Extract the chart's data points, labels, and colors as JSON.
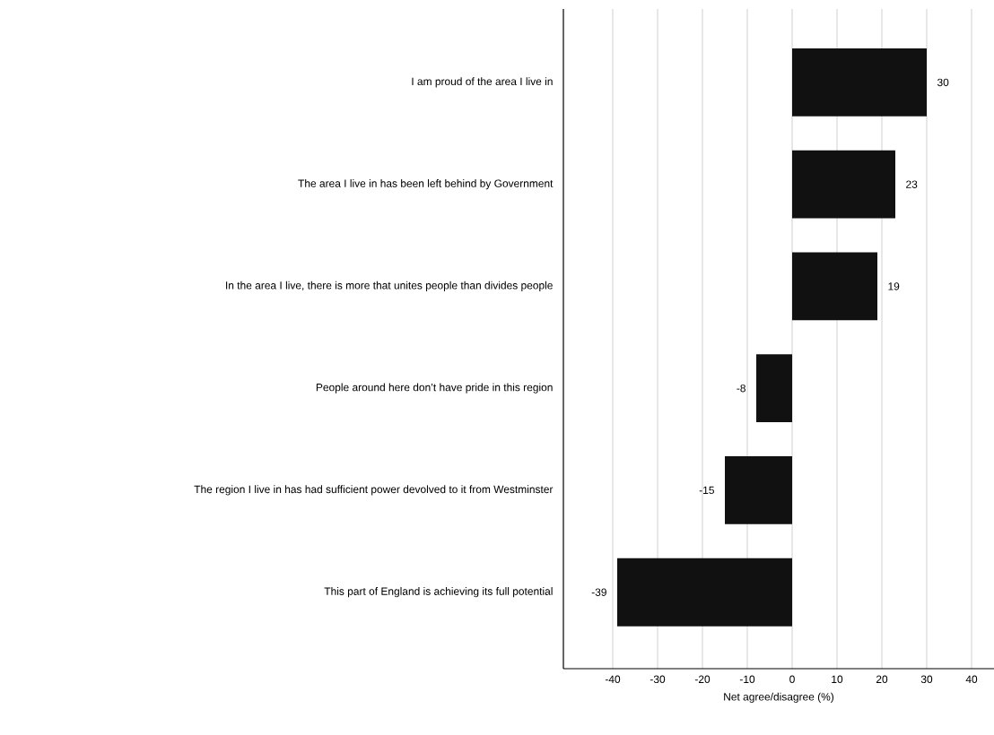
{
  "chart_data": {
    "type": "bar",
    "orientation": "horizontal",
    "categories": [
      "I am proud of the area I live in",
      "The area I live in has been left behind by Government",
      "In the area I live, there is more that unites people than divides people",
      "People around here don’t have pride in this region",
      "The region I live in has had sufficient power devolved to it from Westminster",
      "This part of England is achieving its full potential"
    ],
    "values": [
      30,
      23,
      19,
      -8,
      -15,
      -39
    ],
    "color": "#111111",
    "xlim": [
      -51,
      45
    ],
    "xticks": [
      -40,
      -30,
      -20,
      -10,
      0,
      10,
      20,
      30,
      40
    ],
    "xlabel": "Net agree/disagree (%)",
    "grid": "x",
    "data_labels": true
  }
}
